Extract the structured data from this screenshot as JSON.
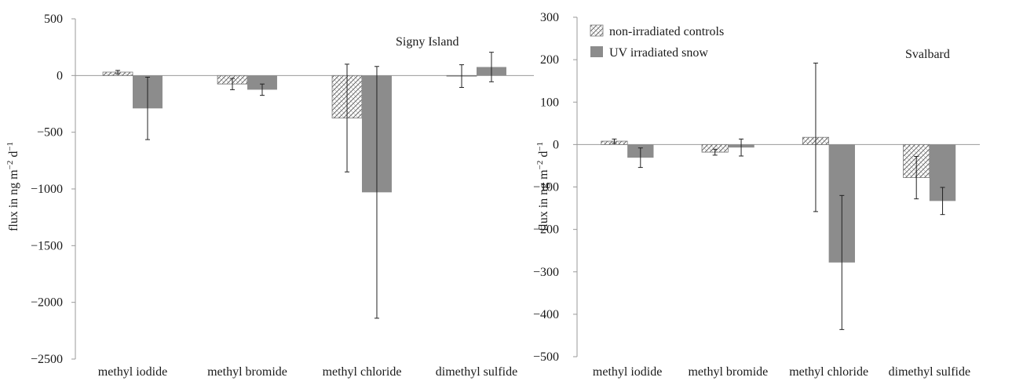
{
  "chart_data": [
    {
      "type": "bar",
      "title": "Signy Island",
      "ylabel": "flux in ng m−2 d−1",
      "ylim": [
        -2500,
        500
      ],
      "yticks": [
        500,
        0,
        -500,
        -1000,
        -1500,
        -2000,
        -2500
      ],
      "ytick_labels": [
        "500",
        "0",
        "−500",
        "−1000",
        "−1500",
        "−2000",
        "−2500"
      ],
      "categories": [
        "methyl iodide",
        "methyl bromide",
        "methyl chloride",
        "dimethyl sulfide"
      ],
      "grid": false,
      "series": [
        {
          "name": "non-irradiated controls",
          "pattern": "hatched",
          "values": [
            30,
            -75,
            -375,
            -5
          ],
          "errors": [
            15,
            50,
            475,
            100
          ]
        },
        {
          "name": "UV irradiated snow",
          "pattern": "solid",
          "values": [
            -290,
            -125,
            -1030,
            75
          ],
          "errors": [
            275,
            50,
            1110,
            130
          ]
        }
      ]
    },
    {
      "type": "bar",
      "title": "Svalbard",
      "ylabel": "flux in ng m−2 d−1",
      "ylim": [
        -500,
        300
      ],
      "yticks": [
        300,
        200,
        100,
        0,
        -100,
        -200,
        -300,
        -400,
        -500
      ],
      "ytick_labels": [
        "300",
        "200",
        "100",
        "0",
        "−100",
        "−200",
        "−300",
        "−400",
        "−500"
      ],
      "categories": [
        "methyl iodide",
        "methyl bromide",
        "methyl chloride",
        "dimethyl sulfide"
      ],
      "grid": false,
      "legend": "top-left",
      "series": [
        {
          "name": "non-irradiated controls",
          "pattern": "hatched",
          "values": [
            8,
            -18,
            17,
            -78
          ],
          "errors": [
            5,
            7,
            175,
            50
          ]
        },
        {
          "name": "UV irradiated snow",
          "pattern": "solid",
          "values": [
            -31,
            -7,
            -278,
            -133
          ],
          "errors": [
            23,
            20,
            158,
            32
          ]
        }
      ]
    }
  ],
  "colors": {
    "solid": "#8c8c8c",
    "hatch_line": "#555555",
    "axis": "#9a9a9a",
    "text": "#1a1a1a"
  }
}
